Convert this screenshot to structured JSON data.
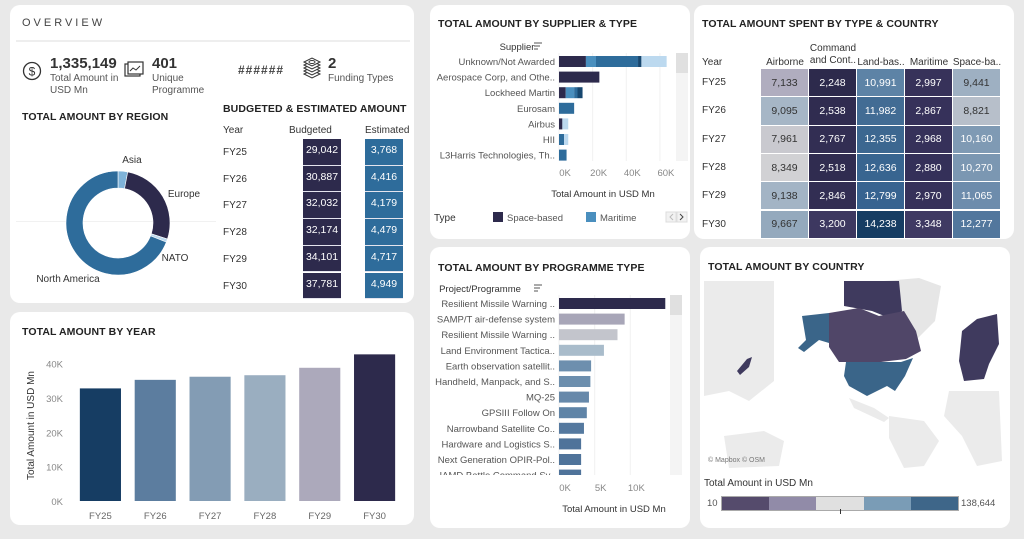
{
  "overview": {
    "title": "OVERVIEW",
    "kpis": [
      {
        "icon": "dollar-circle-icon",
        "value": "1,335,149",
        "label": "Total Amount in USD Mn"
      },
      {
        "icon": "chart-card-icon",
        "value": "401",
        "label": "Unique Programme"
      },
      {
        "icon": "hidden",
        "value": "######",
        "label": ""
      },
      {
        "icon": "money-stack-icon",
        "value": "2",
        "label": "Funding Types"
      }
    ]
  },
  "region": {
    "title": "TOTAL AMOUNT BY REGION",
    "slices": [
      {
        "label": "Asia",
        "share": 0.03,
        "color": "#7fb3d9"
      },
      {
        "label": "Europe",
        "share": 0.27,
        "color": "#2d2a4c"
      },
      {
        "label": "NATO",
        "share": 0.01,
        "color": "#bcd9ef"
      },
      {
        "label": "North America",
        "share": 0.69,
        "color": "#2e6c9b"
      }
    ]
  },
  "budget": {
    "title": "BUDGETED & ESTIMATED AMOUNT",
    "headers": [
      "Year",
      "Budgeted",
      "Estimated"
    ],
    "rows": [
      {
        "year": "FY25",
        "budgeted": "29,042",
        "estimated": "3,768"
      },
      {
        "year": "FY26",
        "budgeted": "30,887",
        "estimated": "4,416"
      },
      {
        "year": "FY27",
        "budgeted": "32,032",
        "estimated": "4,179"
      },
      {
        "year": "FY28",
        "budgeted": "32,174",
        "estimated": "4,479"
      },
      {
        "year": "FY29",
        "budgeted": "34,101",
        "estimated": "4,717"
      },
      {
        "year": "FY30",
        "budgeted": "37,781",
        "estimated": "4,949"
      }
    ]
  },
  "chart_data": [
    {
      "id": "by_year",
      "type": "bar",
      "title": "TOTAL AMOUNT BY YEAR",
      "categories": [
        "FY25",
        "FY26",
        "FY27",
        "FY28",
        "FY29",
        "FY30"
      ],
      "values": [
        32810,
        35303,
        36211,
        36653,
        38818,
        42730
      ],
      "colors": [
        "#163d63",
        "#5c7d9f",
        "#839cb4",
        "#9aaec0",
        "#aca9bb",
        "#2d2a4c"
      ],
      "xlabel": "",
      "ylabel": "Total Amount in USD Mn",
      "ylim": [
        0,
        44000
      ],
      "yticks": [
        0,
        10000,
        20000,
        30000,
        40000
      ],
      "ytick_labels": [
        "0K",
        "10K",
        "20K",
        "30K",
        "40K"
      ]
    },
    {
      "id": "by_supplier",
      "type": "bar",
      "orientation": "horizontal-stacked",
      "title": "TOTAL AMOUNT BY SUPPLIER & TYPE",
      "category_header": "Supplier",
      "categories": [
        "Unknown/Not Awarded",
        "Aerospace Corp, and Othe..",
        "Lockheed Martin",
        "Eurosam",
        "Airbus",
        "HII",
        "L3Harris Technologies, Th.."
      ],
      "series": [
        {
          "name": "Space-based",
          "color": "#2d2a4c",
          "values": [
            16000,
            24000,
            4000,
            0,
            2000,
            0,
            0
          ]
        },
        {
          "name": "Maritime",
          "color": "#4a8fbe",
          "values": [
            6000,
            0,
            5000,
            0,
            0,
            0,
            0
          ]
        },
        {
          "name": "Land-based",
          "color": "#2e6c9b",
          "values": [
            25000,
            0,
            2000,
            9000,
            0,
            3000,
            4500
          ]
        },
        {
          "name": "Command and Control",
          "color": "#17476f",
          "values": [
            2000,
            0,
            3000,
            0,
            0,
            0,
            0
          ]
        },
        {
          "name": "Airborne",
          "color": "#bcd9ef",
          "values": [
            15000,
            0,
            0,
            0,
            3500,
            2500,
            0
          ]
        }
      ],
      "xlabel": "Total Amount in USD Mn",
      "xlim": [
        0,
        66000
      ],
      "xticks": [
        0,
        20000,
        40000,
        60000
      ],
      "xtick_labels": [
        "0K",
        "20K",
        "40K",
        "60K"
      ],
      "legend_title": "Type",
      "legend_visible": [
        "Space-based",
        "Maritime"
      ],
      "legend": "bottom"
    },
    {
      "id": "by_programme",
      "type": "bar",
      "orientation": "horizontal",
      "title": "TOTAL AMOUNT BY PROGRAMME TYPE",
      "category_header": "Project/Programme",
      "categories": [
        "Resilient Missile Warning ..",
        "SAMP/T air-defense system",
        "Resilient Missile Warning ..",
        "Land Environment Tactica..",
        "Earth observation satellit..",
        "Handheld, Manpack, and S..",
        "MQ-25",
        "GPSIII Follow On",
        "Narrowband Satellite Co..",
        "Hardware and Logistics S..",
        "Next Generation OPIR-Pol..",
        "IAMD Battle Command Sy.."
      ],
      "values": [
        14900,
        9200,
        8200,
        6300,
        4500,
        4400,
        4200,
        3900,
        3500,
        3100,
        3100,
        3100
      ],
      "colors": [
        "#2d2a4c",
        "#a8a6b8",
        "#c3c5cc",
        "#a9bccb",
        "#6d8fae",
        "#6d8fae",
        "#6789aa",
        "#5f84a7",
        "#55799f",
        "#4f739a",
        "#4f739a",
        "#4f739a"
      ],
      "xlabel": "Total Amount in USD Mn",
      "xlim": [
        0,
        15500
      ],
      "xticks": [
        0,
        5000,
        10000
      ],
      "xtick_labels": [
        "0K",
        "5K",
        "10K"
      ]
    },
    {
      "id": "by_type_country",
      "type": "heatmap",
      "title": "TOTAL AMOUNT SPENT BY TYPE & COUNTRY",
      "row_header": "Year",
      "columns": [
        "Airborne",
        "Command\nand Cont..",
        "Land-bas..",
        "Maritime",
        "Space-ba.."
      ],
      "rows": [
        "FY25",
        "FY26",
        "FY27",
        "FY28",
        "FY29",
        "FY30"
      ],
      "values": [
        [
          7133,
          2248,
          10991,
          2997,
          9441
        ],
        [
          9095,
          2538,
          11982,
          2867,
          8821
        ],
        [
          7961,
          2767,
          12355,
          2968,
          10160
        ],
        [
          8349,
          2518,
          12636,
          2880,
          10270
        ],
        [
          9138,
          2846,
          12799,
          2970,
          11065
        ],
        [
          9667,
          3200,
          14238,
          3348,
          12277
        ]
      ],
      "labels": [
        [
          "7,133",
          "2,248",
          "10,991",
          "2,997",
          "9,441"
        ],
        [
          "9,095",
          "2,538",
          "11,982",
          "2,867",
          "8,821"
        ],
        [
          "7,961",
          "2,767",
          "12,355",
          "2,968",
          "10,160"
        ],
        [
          "8,349",
          "2,518",
          "12,636",
          "2,880",
          "10,270"
        ],
        [
          "9,138",
          "2,846",
          "12,799",
          "2,970",
          "11,065"
        ],
        [
          "9,667",
          "3,200",
          "14,238",
          "3,348",
          "12,277"
        ]
      ],
      "colors": [
        [
          "#b0adbf",
          "#2d2a4c",
          "#5d83a6",
          "#37325a",
          "#9eb0c2"
        ],
        [
          "#a6b6c6",
          "#302c50",
          "#426c94",
          "#36315a",
          "#b7bfca"
        ],
        [
          "#c9c9cf",
          "#322e53",
          "#3c6790",
          "#36315a",
          "#7f9ab4"
        ],
        [
          "#d1d1d4",
          "#302c50",
          "#386590",
          "#343059",
          "#7b97b2"
        ],
        [
          "#a3b4c5",
          "#322e53",
          "#376390",
          "#36315a",
          "#6d8cac"
        ],
        [
          "#94a9bd",
          "#3d3860",
          "#163d63",
          "#3f3a63",
          "#52779d"
        ]
      ]
    },
    {
      "id": "by_country",
      "type": "map",
      "title": "TOTAL AMOUNT BY COUNTRY",
      "regions": [
        {
          "name": "United States",
          "color": "#3a6589"
        },
        {
          "name": "Canada",
          "color": "#504668"
        },
        {
          "name": "Europe countries",
          "color": "#3f3a5e"
        },
        {
          "name": "Japan",
          "color": "#3f3a5e"
        }
      ],
      "attribution": "© Mapbox  © OSM",
      "legend_title": "Total Amount in USD Mn",
      "legend_min": "10",
      "legend_max": "138,644",
      "legend_colors": [
        "#554b6c",
        "#918ba8",
        "#e0e0e0",
        "#7a9cb6",
        "#3e6689"
      ]
    }
  ]
}
